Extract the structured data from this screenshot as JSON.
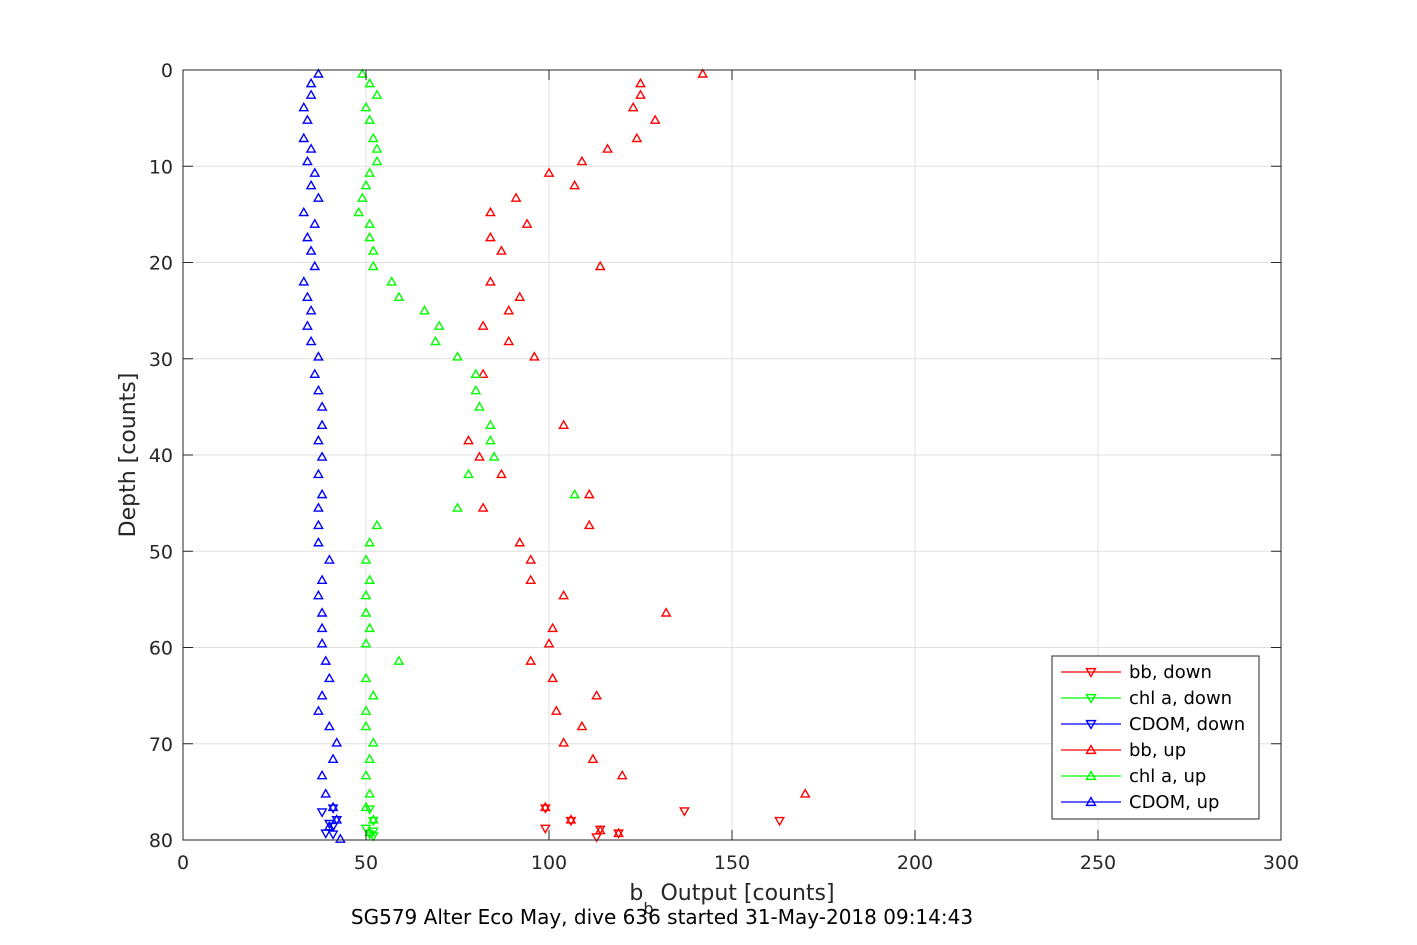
{
  "chart_data": {
    "type": "scatter",
    "xlabel_main": "b",
    "xlabel_sub": "b",
    "xlabel_rest": " Output [counts]",
    "ylabel": "Depth [counts]",
    "caption": "SG579 Alter Eco May, dive 636 started 31-May-2018 09:14:43",
    "xlim": [
      0,
      300
    ],
    "ylim": [
      0,
      80
    ],
    "y_reversed": true,
    "grid": true,
    "legend_placement": "bottom-right",
    "xticks": [
      "0",
      "50",
      "100",
      "150",
      "200",
      "250",
      "300"
    ],
    "yticks": [
      "0",
      "10",
      "20",
      "30",
      "40",
      "50",
      "60",
      "70",
      "80"
    ],
    "colors": {
      "bb": "#ff0000",
      "chl": "#00ff00",
      "cdom": "#0000ff"
    },
    "series": [
      {
        "name": "bb, down",
        "color": "#ff0000",
        "marker": "triangle-down",
        "points": [
          [
            99,
            76.7
          ],
          [
            137,
            77
          ],
          [
            106,
            78
          ],
          [
            163,
            78
          ],
          [
            99,
            78.8
          ],
          [
            114,
            78.9
          ],
          [
            119,
            79.3
          ],
          [
            113,
            79.7
          ]
        ]
      },
      {
        "name": "chl a, down",
        "color": "#00ff00",
        "marker": "triangle-down",
        "points": [
          [
            51,
            76.8
          ],
          [
            52,
            78
          ],
          [
            50,
            78.8
          ],
          [
            52,
            79.1
          ],
          [
            51,
            79.4
          ],
          [
            52,
            79.6
          ]
        ]
      },
      {
        "name": "CDOM, down",
        "color": "#0000ff",
        "marker": "triangle-down",
        "points": [
          [
            41,
            76.7
          ],
          [
            38,
            77.1
          ],
          [
            42,
            77.9
          ],
          [
            40,
            78.3
          ],
          [
            41,
            78.6
          ],
          [
            39,
            79.3
          ],
          [
            41,
            79.4
          ]
        ]
      },
      {
        "name": "bb, up",
        "color": "#ff0000",
        "marker": "triangle-up",
        "points": [
          [
            142,
            0.4
          ],
          [
            125,
            1.4
          ],
          [
            125,
            2.6
          ],
          [
            123,
            3.9
          ],
          [
            129,
            5.2
          ],
          [
            124,
            7.1
          ],
          [
            116,
            8.2
          ],
          [
            109,
            9.5
          ],
          [
            100,
            10.7
          ],
          [
            107,
            12
          ],
          [
            91,
            13.3
          ],
          [
            84,
            14.8
          ],
          [
            94,
            16
          ],
          [
            84,
            17.4
          ],
          [
            87,
            18.8
          ],
          [
            114,
            20.4
          ],
          [
            84,
            22
          ],
          [
            92,
            23.6
          ],
          [
            89,
            25
          ],
          [
            82,
            26.6
          ],
          [
            89,
            28.2
          ],
          [
            96,
            29.8
          ],
          [
            82,
            31.6
          ],
          [
            104,
            36.9
          ],
          [
            78,
            38.5
          ],
          [
            81,
            40.2
          ],
          [
            87,
            42
          ],
          [
            111,
            44.1
          ],
          [
            82,
            45.5
          ],
          [
            111,
            47.3
          ],
          [
            92,
            49.1
          ],
          [
            95,
            50.9
          ],
          [
            95,
            53
          ],
          [
            104,
            54.6
          ],
          [
            132,
            56.4
          ],
          [
            101,
            58
          ],
          [
            100,
            59.6
          ],
          [
            95,
            61.4
          ],
          [
            101,
            63.2
          ],
          [
            113,
            65
          ],
          [
            102,
            66.6
          ],
          [
            109,
            68.2
          ],
          [
            104,
            69.9
          ],
          [
            112,
            71.6
          ],
          [
            120,
            73.3
          ],
          [
            170,
            75.2
          ],
          [
            99,
            76.6
          ],
          [
            106,
            77.9
          ],
          [
            114,
            79
          ],
          [
            119,
            79.3
          ]
        ]
      },
      {
        "name": "chl a, up",
        "color": "#00ff00",
        "marker": "triangle-up",
        "points": [
          [
            49,
            0.4
          ],
          [
            51,
            1.4
          ],
          [
            53,
            2.6
          ],
          [
            50,
            3.9
          ],
          [
            51,
            5.2
          ],
          [
            52,
            7.1
          ],
          [
            53,
            8.2
          ],
          [
            53,
            9.5
          ],
          [
            51,
            10.7
          ],
          [
            50,
            12
          ],
          [
            49,
            13.3
          ],
          [
            48,
            14.8
          ],
          [
            51,
            16
          ],
          [
            51,
            17.4
          ],
          [
            52,
            18.8
          ],
          [
            52,
            20.4
          ],
          [
            57,
            22
          ],
          [
            59,
            23.6
          ],
          [
            66,
            25
          ],
          [
            70,
            26.6
          ],
          [
            69,
            28.2
          ],
          [
            75,
            29.8
          ],
          [
            80,
            31.6
          ],
          [
            80,
            33.3
          ],
          [
            81,
            35
          ],
          [
            84,
            36.9
          ],
          [
            84,
            38.5
          ],
          [
            85,
            40.2
          ],
          [
            78,
            42
          ],
          [
            107,
            44.1
          ],
          [
            75,
            45.5
          ],
          [
            53,
            47.3
          ],
          [
            51,
            49.1
          ],
          [
            50,
            50.9
          ],
          [
            51,
            53
          ],
          [
            50,
            54.6
          ],
          [
            50,
            56.4
          ],
          [
            51,
            58
          ],
          [
            50,
            59.6
          ],
          [
            59,
            61.4
          ],
          [
            50,
            63.2
          ],
          [
            52,
            65
          ],
          [
            50,
            66.6
          ],
          [
            50,
            68.2
          ],
          [
            52,
            69.9
          ],
          [
            51,
            71.6
          ],
          [
            50,
            73.3
          ],
          [
            51,
            75.2
          ],
          [
            50,
            76.6
          ],
          [
            52,
            77.9
          ],
          [
            51,
            79.2
          ]
        ]
      },
      {
        "name": "CDOM, up",
        "color": "#0000ff",
        "marker": "triangle-up",
        "points": [
          [
            37,
            0.4
          ],
          [
            35,
            1.4
          ],
          [
            35,
            2.6
          ],
          [
            33,
            3.9
          ],
          [
            34,
            5.2
          ],
          [
            33,
            7.1
          ],
          [
            35,
            8.2
          ],
          [
            34,
            9.5
          ],
          [
            36,
            10.7
          ],
          [
            35,
            12
          ],
          [
            37,
            13.3
          ],
          [
            33,
            14.8
          ],
          [
            36,
            16
          ],
          [
            34,
            17.4
          ],
          [
            35,
            18.8
          ],
          [
            36,
            20.4
          ],
          [
            33,
            22
          ],
          [
            34,
            23.6
          ],
          [
            35,
            25
          ],
          [
            34,
            26.6
          ],
          [
            35,
            28.2
          ],
          [
            37,
            29.8
          ],
          [
            36,
            31.6
          ],
          [
            37,
            33.3
          ],
          [
            38,
            35
          ],
          [
            38,
            36.9
          ],
          [
            37,
            38.5
          ],
          [
            38,
            40.2
          ],
          [
            37,
            42
          ],
          [
            38,
            44.1
          ],
          [
            37,
            45.5
          ],
          [
            37,
            47.3
          ],
          [
            37,
            49.1
          ],
          [
            40,
            50.9
          ],
          [
            38,
            53
          ],
          [
            37,
            54.6
          ],
          [
            38,
            56.4
          ],
          [
            38,
            58
          ],
          [
            38,
            59.6
          ],
          [
            39,
            61.4
          ],
          [
            40,
            63.2
          ],
          [
            38,
            65
          ],
          [
            37,
            66.6
          ],
          [
            40,
            68.2
          ],
          [
            42,
            69.9
          ],
          [
            41,
            71.6
          ],
          [
            38,
            73.3
          ],
          [
            39,
            75.2
          ],
          [
            41,
            76.6
          ],
          [
            42,
            77.9
          ],
          [
            40,
            78.6
          ],
          [
            43,
            79.9
          ]
        ]
      }
    ]
  }
}
